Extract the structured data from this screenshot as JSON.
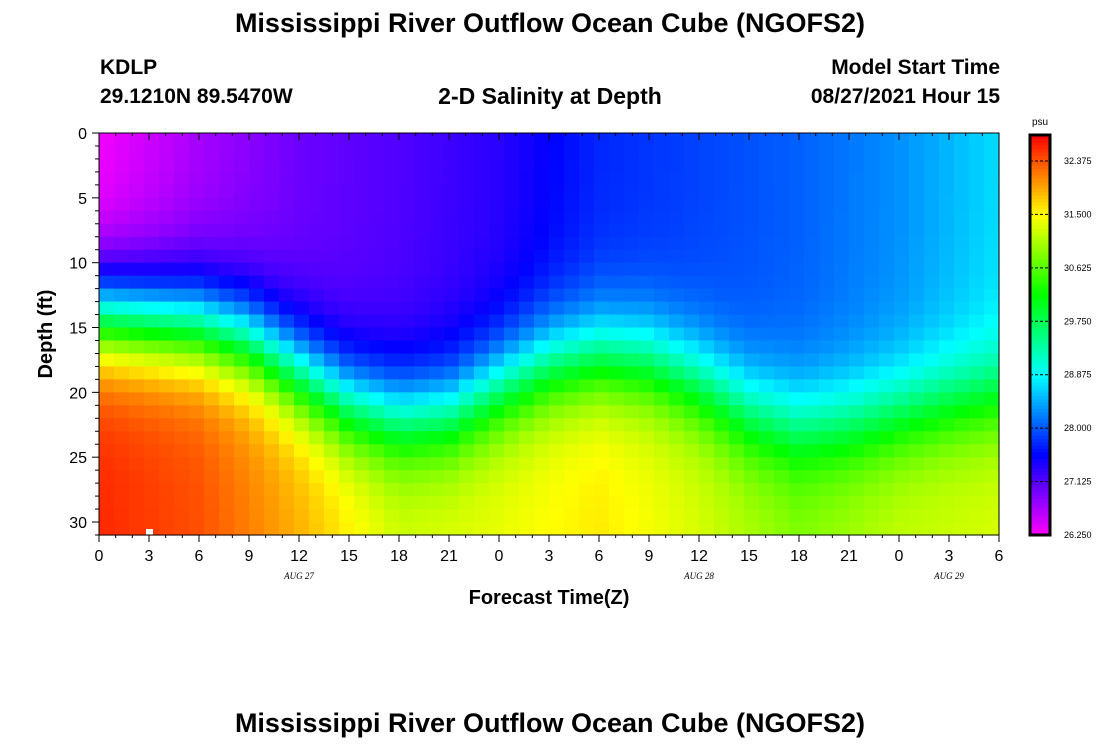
{
  "header": {
    "title": "Mississippi River Outflow Ocean Cube (NGOFS2)",
    "station_id": "KDLP",
    "station_coords": "29.1210N  89.5470W",
    "subtitle": "2-D Salinity at Depth",
    "model_start_label": "Model Start Time",
    "model_start_value": "08/27/2021 Hour 15"
  },
  "footer": {
    "title": "Mississippi River Outflow Ocean Cube (NGOFS2)"
  },
  "chart_data": {
    "type": "heatmap",
    "title": "2-D Salinity at Depth",
    "xlabel": "Forecast Time(Z)",
    "ylabel": "Depth (ft)",
    "x_tick_labels": [
      "0",
      "3",
      "6",
      "9",
      "12",
      "15",
      "18",
      "21",
      "0",
      "3",
      "6",
      "9",
      "12",
      "15",
      "18",
      "21",
      "0",
      "3",
      "6"
    ],
    "x_range_hours": [
      0,
      54
    ],
    "date_labels": [
      {
        "label": "AUG 27",
        "hour": 12
      },
      {
        "label": "AUG 28",
        "hour": 36
      },
      {
        "label": "AUG 29",
        "hour": 51
      }
    ],
    "y_ticks": [
      0,
      5,
      10,
      15,
      20,
      25,
      30
    ],
    "ylim": [
      0,
      31
    ],
    "y_inverted": true,
    "colorbar": {
      "unit": "psu",
      "min": 26.25,
      "max": 32.8,
      "ticks": [
        "26.250",
        "27.125",
        "28.000",
        "28.875",
        "29.750",
        "30.625",
        "31.500",
        "32.375"
      ]
    },
    "halocline_depth_ft": {
      "hours": [
        0,
        6,
        9,
        12,
        15,
        18,
        21,
        24,
        27,
        30,
        33,
        36,
        39,
        42,
        45,
        48,
        51,
        54
      ],
      "values": [
        14,
        14.8,
        16,
        18.5,
        20.8,
        21.8,
        21.5,
        19.5,
        17.8,
        17.2,
        17.6,
        19.2,
        21.5,
        22.6,
        22.4,
        21.6,
        20.8,
        20.2
      ]
    },
    "surface_salinity_psu": {
      "hours": [
        0,
        6,
        12,
        18,
        24,
        30,
        36,
        42,
        48,
        54
      ],
      "values": [
        26.3,
        26.7,
        27.0,
        27.15,
        27.35,
        27.75,
        27.9,
        28.05,
        28.3,
        28.7
      ]
    },
    "deep_salinity_psu": {
      "hours": [
        0,
        6,
        12,
        18,
        24,
        30,
        36,
        42,
        48,
        54
      ],
      "values": [
        32.6,
        32.4,
        31.9,
        31.3,
        31.4,
        31.6,
        31.3,
        30.9,
        31.2,
        31.3
      ]
    }
  }
}
